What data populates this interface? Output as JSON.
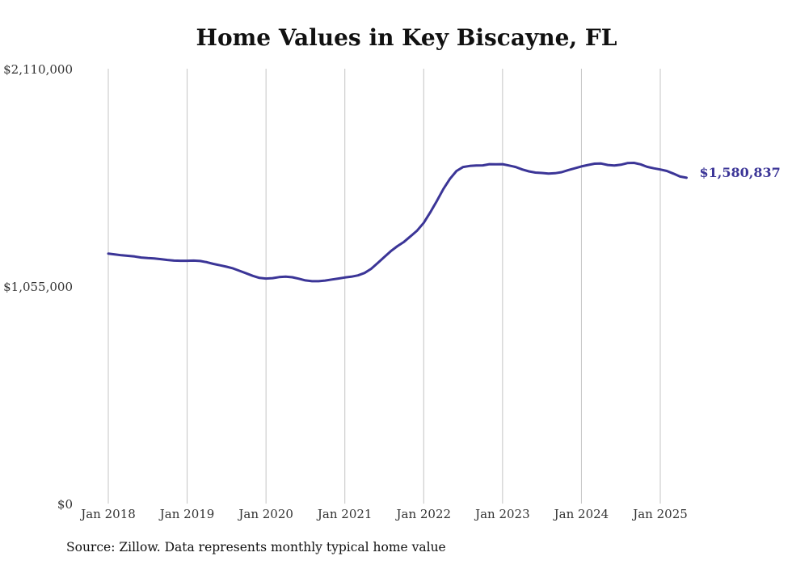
{
  "chart_data": {
    "type": "line",
    "title": "Home Values in Key Biscayne, FL",
    "y_ticks": [
      {
        "value": 2110000,
        "label": "$2,110,000"
      },
      {
        "value": 1055000,
        "label": "$1,055,000"
      },
      {
        "value": 0,
        "label": "$0"
      }
    ],
    "ylim": [
      0,
      2110000
    ],
    "x_ticks": [
      {
        "date": "2018-01",
        "label": "Jan 2018"
      },
      {
        "date": "2019-01",
        "label": "Jan 2019"
      },
      {
        "date": "2020-01",
        "label": "Jan 2020"
      },
      {
        "date": "2021-01",
        "label": "Jan 2021"
      },
      {
        "date": "2022-01",
        "label": "Jan 2022"
      },
      {
        "date": "2023-01",
        "label": "Jan 2023"
      },
      {
        "date": "2024-01",
        "label": "Jan 2024"
      },
      {
        "date": "2025-01",
        "label": "Jan 2025"
      }
    ],
    "xlim": [
      "2018-01",
      "2025-08"
    ],
    "grid": "vertical",
    "color": "#3b3597",
    "series": [
      {
        "points": [
          [
            "2018-01",
            1213000
          ],
          [
            "2018-02",
            1209000
          ],
          [
            "2018-03",
            1205000
          ],
          [
            "2018-04",
            1202000
          ],
          [
            "2018-05",
            1199000
          ],
          [
            "2018-06",
            1194000
          ],
          [
            "2018-07",
            1191000
          ],
          [
            "2018-08",
            1189000
          ],
          [
            "2018-09",
            1186000
          ],
          [
            "2018-10",
            1182000
          ],
          [
            "2018-11",
            1179000
          ],
          [
            "2018-12",
            1178000
          ],
          [
            "2019-01",
            1178000
          ],
          [
            "2019-02",
            1179000
          ],
          [
            "2019-03",
            1177000
          ],
          [
            "2019-04",
            1171000
          ],
          [
            "2019-05",
            1163000
          ],
          [
            "2019-06",
            1156000
          ],
          [
            "2019-07",
            1149000
          ],
          [
            "2019-08",
            1141000
          ],
          [
            "2019-09",
            1129000
          ],
          [
            "2019-10",
            1117000
          ],
          [
            "2019-11",
            1105000
          ],
          [
            "2019-12",
            1095000
          ],
          [
            "2020-01",
            1092000
          ],
          [
            "2020-02",
            1094000
          ],
          [
            "2020-03",
            1099000
          ],
          [
            "2020-04",
            1101000
          ],
          [
            "2020-05",
            1098000
          ],
          [
            "2020-06",
            1091000
          ],
          [
            "2020-07",
            1083000
          ],
          [
            "2020-08",
            1079000
          ],
          [
            "2020-09",
            1079000
          ],
          [
            "2020-10",
            1082000
          ],
          [
            "2020-11",
            1087000
          ],
          [
            "2020-12",
            1092000
          ],
          [
            "2021-01",
            1097000
          ],
          [
            "2021-02",
            1101000
          ],
          [
            "2021-03",
            1107000
          ],
          [
            "2021-04",
            1119000
          ],
          [
            "2021-05",
            1139000
          ],
          [
            "2021-06",
            1167000
          ],
          [
            "2021-07",
            1196000
          ],
          [
            "2021-08",
            1225000
          ],
          [
            "2021-09",
            1249000
          ],
          [
            "2021-10",
            1270000
          ],
          [
            "2021-11",
            1297000
          ],
          [
            "2021-12",
            1325000
          ],
          [
            "2022-01",
            1362000
          ],
          [
            "2022-02",
            1413000
          ],
          [
            "2022-03",
            1468000
          ],
          [
            "2022-04",
            1527000
          ],
          [
            "2022-05",
            1576000
          ],
          [
            "2022-06",
            1614000
          ],
          [
            "2022-07",
            1633000
          ],
          [
            "2022-08",
            1638000
          ],
          [
            "2022-09",
            1640000
          ],
          [
            "2022-10",
            1641000
          ],
          [
            "2022-11",
            1647000
          ],
          [
            "2022-12",
            1646000
          ],
          [
            "2023-01",
            1647000
          ],
          [
            "2023-02",
            1640000
          ],
          [
            "2023-03",
            1633000
          ],
          [
            "2023-04",
            1621000
          ],
          [
            "2023-05",
            1612000
          ],
          [
            "2023-06",
            1606000
          ],
          [
            "2023-07",
            1604000
          ],
          [
            "2023-08",
            1601000
          ],
          [
            "2023-09",
            1603000
          ],
          [
            "2023-10",
            1608000
          ],
          [
            "2023-11",
            1618000
          ],
          [
            "2023-12",
            1627000
          ],
          [
            "2024-01",
            1636000
          ],
          [
            "2024-02",
            1643000
          ],
          [
            "2024-03",
            1649000
          ],
          [
            "2024-04",
            1650000
          ],
          [
            "2024-05",
            1643000
          ],
          [
            "2024-06",
            1640000
          ],
          [
            "2024-07",
            1644000
          ],
          [
            "2024-08",
            1652000
          ],
          [
            "2024-09",
            1653000
          ],
          [
            "2024-10",
            1646000
          ],
          [
            "2024-11",
            1634000
          ],
          [
            "2024-12",
            1627000
          ],
          [
            "2025-01",
            1621000
          ],
          [
            "2025-02",
            1614000
          ],
          [
            "2025-03",
            1601000
          ],
          [
            "2025-04",
            1587000
          ],
          [
            "2025-05",
            1580837
          ]
        ],
        "end_label": "$1,580,837"
      }
    ]
  },
  "source_note": "Source: Zillow. Data represents monthly typical home value"
}
